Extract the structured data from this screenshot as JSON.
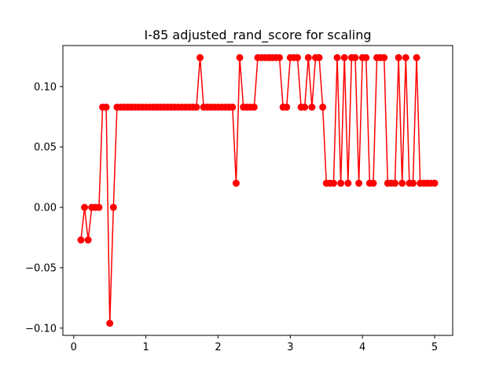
{
  "chart_data": {
    "type": "line",
    "title": "I-85 adjusted_rand_score for scaling",
    "xlabel": "",
    "ylabel": "",
    "xlim": [
      -0.15,
      5.25
    ],
    "ylim": [
      -0.106,
      0.134
    ],
    "xticks": [
      0,
      1,
      2,
      3,
      4,
      5
    ],
    "xtick_labels": [
      "0",
      "1",
      "2",
      "3",
      "4",
      "5"
    ],
    "yticks": [
      -0.1,
      -0.05,
      0.0,
      0.05,
      0.1
    ],
    "ytick_labels": [
      "−0.10",
      "−0.05",
      "0.00",
      "0.05",
      "0.10"
    ],
    "grid": false,
    "series": [
      {
        "color": "#ff0000",
        "marker": "circle",
        "x": [
          0.1,
          0.15,
          0.2,
          0.25,
          0.3,
          0.35,
          0.4,
          0.45,
          0.5,
          0.55,
          0.6,
          0.65,
          0.7,
          0.75,
          0.8,
          0.85,
          0.9,
          0.95,
          1.0,
          1.05,
          1.1,
          1.15,
          1.2,
          1.25,
          1.3,
          1.35,
          1.4,
          1.45,
          1.5,
          1.55,
          1.6,
          1.65,
          1.7,
          1.75,
          1.8,
          1.85,
          1.9,
          1.95,
          2.0,
          2.05,
          2.1,
          2.15,
          2.2,
          2.25,
          2.3,
          2.35,
          2.4,
          2.45,
          2.5,
          2.55,
          2.6,
          2.65,
          2.7,
          2.75,
          2.8,
          2.85,
          2.9,
          2.95,
          3.0,
          3.05,
          3.1,
          3.15,
          3.2,
          3.25,
          3.3,
          3.35,
          3.4,
          3.45,
          3.5,
          3.55,
          3.6,
          3.65,
          3.7,
          3.75,
          3.8,
          3.85,
          3.9,
          3.95,
          4.0,
          4.05,
          4.1,
          4.15,
          4.2,
          4.25,
          4.3,
          4.35,
          4.4,
          4.45,
          4.5,
          4.55,
          4.6,
          4.65,
          4.7,
          4.75,
          4.8,
          4.85,
          4.9,
          4.95,
          5.0
        ],
        "y": [
          -0.027,
          0.0,
          -0.027,
          0.0,
          0.0,
          0.0,
          0.083,
          0.083,
          -0.096,
          0.0,
          0.083,
          0.083,
          0.083,
          0.083,
          0.083,
          0.083,
          0.083,
          0.083,
          0.083,
          0.083,
          0.083,
          0.083,
          0.083,
          0.083,
          0.083,
          0.083,
          0.083,
          0.083,
          0.083,
          0.083,
          0.083,
          0.083,
          0.083,
          0.124,
          0.083,
          0.083,
          0.083,
          0.083,
          0.083,
          0.083,
          0.083,
          0.083,
          0.083,
          0.02,
          0.124,
          0.083,
          0.083,
          0.083,
          0.083,
          0.124,
          0.124,
          0.124,
          0.124,
          0.124,
          0.124,
          0.124,
          0.083,
          0.083,
          0.124,
          0.124,
          0.124,
          0.083,
          0.083,
          0.124,
          0.083,
          0.124,
          0.124,
          0.083,
          0.02,
          0.02,
          0.02,
          0.124,
          0.02,
          0.124,
          0.02,
          0.124,
          0.124,
          0.02,
          0.124,
          0.124,
          0.02,
          0.02,
          0.124,
          0.124,
          0.124,
          0.02,
          0.02,
          0.02,
          0.124,
          0.02,
          0.124,
          0.02,
          0.02,
          0.124,
          0.02,
          0.02,
          0.02,
          0.02,
          0.02
        ]
      }
    ]
  }
}
